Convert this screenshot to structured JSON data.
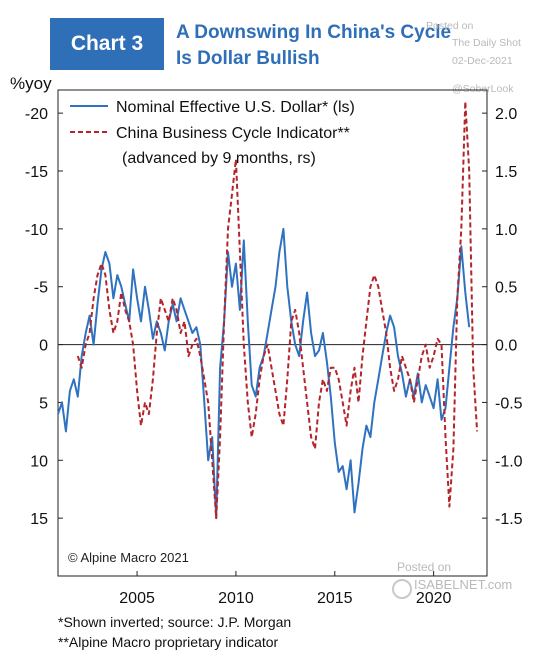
{
  "header": {
    "badge": "Chart 3",
    "title_line1": "A Downswing In China's Cycle",
    "title_line2": "Is Dollar Bullish"
  },
  "watermarks": {
    "posted_on": "Posted on",
    "source": "The Daily Shot",
    "date": "02-Dec-2021",
    "handle": "@SoberLook",
    "posted_on_2": "Posted on",
    "site": "ISABELNET.com"
  },
  "copyright": "© Alpine Macro 2021",
  "footnotes": [
    "*Shown inverted; source: J.P. Morgan",
    "**Alpine Macro proprietary indicator"
  ],
  "colors": {
    "dollar": "#2f73c0",
    "china": "#b5242a",
    "title": "#2e6fb7"
  },
  "chart_data": {
    "type": "line",
    "y_left_unit": "%yoy",
    "y_left_inverted": true,
    "y_left_lim": [
      -22,
      20
    ],
    "y_left_ticks": [
      -20,
      -15,
      -10,
      -5,
      0,
      5,
      10,
      15
    ],
    "y_left_tick_labels": [
      "-20",
      "-15",
      "-10",
      "-5",
      "0",
      "5",
      "10",
      "15"
    ],
    "y_right_lim": [
      -2.0,
      2.2
    ],
    "y_right_ticks": [
      2.0,
      1.5,
      1.0,
      0.5,
      0.0,
      -0.5,
      -1.0,
      -1.5
    ],
    "y_right_tick_labels": [
      "2.0",
      "1.5",
      "1.0",
      "0.5",
      "0.0",
      "-0.5",
      "-1.0",
      "-1.5"
    ],
    "x_lim": [
      2001.0,
      2022.7
    ],
    "x_ticks": [
      2005,
      2010,
      2015,
      2020
    ],
    "x_tick_labels": [
      "2005",
      "2010",
      "2015",
      "2020"
    ],
    "legend": [
      "Nominal Effective U.S. Dollar* (ls)",
      "China Business Cycle Indicator**",
      "(advanced by 9 months, rs)"
    ],
    "series": [
      {
        "name": "Nominal Effective U.S. Dollar* (ls)",
        "axis": "left",
        "style": "solid",
        "x": [
          2001.0,
          2001.2,
          2001.4,
          2001.6,
          2001.8,
          2002.0,
          2002.2,
          2002.4,
          2002.6,
          2002.8,
          2003.0,
          2003.2,
          2003.4,
          2003.6,
          2003.8,
          2004.0,
          2004.2,
          2004.4,
          2004.6,
          2004.8,
          2005.0,
          2005.2,
          2005.4,
          2005.6,
          2005.8,
          2006.0,
          2006.2,
          2006.4,
          2006.6,
          2006.8,
          2007.0,
          2007.2,
          2007.4,
          2007.6,
          2007.8,
          2008.0,
          2008.2,
          2008.4,
          2008.6,
          2008.8,
          2009.0,
          2009.2,
          2009.4,
          2009.6,
          2009.8,
          2010.0,
          2010.2,
          2010.4,
          2010.6,
          2010.8,
          2011.0,
          2011.2,
          2011.4,
          2011.6,
          2011.8,
          2012.0,
          2012.2,
          2012.4,
          2012.6,
          2012.8,
          2013.0,
          2013.2,
          2013.4,
          2013.6,
          2013.8,
          2014.0,
          2014.2,
          2014.4,
          2014.6,
          2014.8,
          2015.0,
          2015.2,
          2015.4,
          2015.6,
          2015.8,
          2016.0,
          2016.2,
          2016.4,
          2016.6,
          2016.8,
          2017.0,
          2017.2,
          2017.4,
          2017.6,
          2017.8,
          2018.0,
          2018.2,
          2018.4,
          2018.6,
          2018.8,
          2019.0,
          2019.2,
          2019.4,
          2019.6,
          2019.8,
          2020.0,
          2020.2,
          2020.4,
          2020.6,
          2020.8,
          2021.0,
          2021.2,
          2021.4,
          2021.6,
          2021.8
        ],
        "values": [
          6.0,
          5.0,
          7.5,
          4.0,
          3.0,
          4.5,
          1.0,
          -1.0,
          -2.5,
          0.0,
          -3.5,
          -6.5,
          -8.0,
          -7.0,
          -4.0,
          -6.0,
          -5.0,
          -3.5,
          -2.0,
          -6.5,
          -4.0,
          -2.0,
          -5.0,
          -3.0,
          -0.5,
          -2.0,
          -1.0,
          0.5,
          -2.0,
          -3.5,
          -2.0,
          -4.0,
          -3.0,
          -2.0,
          -1.0,
          -1.5,
          0.0,
          5.0,
          10.0,
          8.0,
          15.0,
          2.0,
          -2.0,
          -8.0,
          -5.0,
          -7.0,
          -3.0,
          -9.0,
          -2.0,
          3.5,
          4.5,
          2.0,
          1.0,
          -1.0,
          -3.0,
          -5.0,
          -8.0,
          -10.0,
          -5.0,
          -2.0,
          0.0,
          1.0,
          -2.0,
          -4.5,
          -1.0,
          1.0,
          0.5,
          -1.0,
          1.5,
          4.5,
          8.5,
          11.0,
          10.5,
          12.5,
          10.0,
          14.5,
          12.0,
          9.0,
          7.0,
          8.0,
          5.0,
          3.0,
          1.0,
          -1.0,
          -2.5,
          -1.5,
          1.0,
          2.5,
          4.5,
          3.0,
          4.5,
          2.5,
          5.0,
          3.5,
          4.5,
          5.5,
          3.0,
          6.5,
          5.5,
          2.0,
          -1.5,
          -4.0,
          -8.5,
          -4.5,
          -1.5
        ]
      },
      {
        "name": "China Business Cycle Indicator** (advanced by 9 months, rs)",
        "axis": "right",
        "style": "dashed",
        "x": [
          2002.0,
          2002.2,
          2002.4,
          2002.6,
          2002.8,
          2003.0,
          2003.2,
          2003.4,
          2003.6,
          2003.8,
          2004.0,
          2004.2,
          2004.4,
          2004.6,
          2004.8,
          2005.0,
          2005.2,
          2005.4,
          2005.6,
          2005.8,
          2006.0,
          2006.2,
          2006.4,
          2006.6,
          2006.8,
          2007.0,
          2007.2,
          2007.4,
          2007.6,
          2007.8,
          2008.0,
          2008.2,
          2008.4,
          2008.6,
          2008.8,
          2009.0,
          2009.2,
          2009.4,
          2009.6,
          2009.8,
          2010.0,
          2010.2,
          2010.4,
          2010.6,
          2010.8,
          2011.0,
          2011.2,
          2011.4,
          2011.6,
          2011.8,
          2012.0,
          2012.2,
          2012.4,
          2012.6,
          2012.8,
          2013.0,
          2013.2,
          2013.4,
          2013.6,
          2013.8,
          2014.0,
          2014.2,
          2014.4,
          2014.6,
          2014.8,
          2015.0,
          2015.2,
          2015.4,
          2015.6,
          2015.8,
          2016.0,
          2016.2,
          2016.4,
          2016.6,
          2016.8,
          2017.0,
          2017.2,
          2017.4,
          2017.6,
          2017.8,
          2018.0,
          2018.2,
          2018.4,
          2018.6,
          2018.8,
          2019.0,
          2019.2,
          2019.4,
          2019.6,
          2019.8,
          2020.0,
          2020.2,
          2020.4,
          2020.6,
          2020.8,
          2021.0,
          2021.2,
          2021.4,
          2021.6,
          2021.8,
          2022.0,
          2022.2
        ],
        "values": [
          -0.1,
          -0.2,
          0.0,
          0.1,
          0.4,
          0.6,
          0.7,
          0.6,
          0.3,
          0.1,
          0.2,
          0.45,
          0.3,
          0.2,
          0.0,
          -0.4,
          -0.7,
          -0.5,
          -0.6,
          -0.3,
          0.1,
          0.4,
          0.3,
          0.2,
          0.4,
          0.3,
          0.1,
          0.2,
          -0.1,
          0.0,
          0.05,
          -0.1,
          -0.3,
          -0.5,
          -1.0,
          -1.5,
          -0.8,
          0.2,
          1.0,
          1.3,
          1.6,
          0.8,
          0.0,
          -0.5,
          -0.8,
          -0.6,
          -0.3,
          -0.1,
          0.0,
          -0.2,
          -0.4,
          -0.6,
          -0.7,
          -0.3,
          0.2,
          0.3,
          0.1,
          -0.2,
          -0.5,
          -0.8,
          -0.9,
          -0.5,
          -0.3,
          -0.4,
          -0.2,
          -0.2,
          -0.3,
          -0.5,
          -0.7,
          -0.4,
          -0.2,
          -0.5,
          -0.1,
          0.2,
          0.5,
          0.6,
          0.5,
          0.3,
          0.1,
          -0.2,
          -0.4,
          -0.3,
          -0.1,
          -0.2,
          -0.3,
          -0.5,
          -0.3,
          -0.1,
          0.0,
          -0.2,
          -0.1,
          0.05,
          0.0,
          -0.8,
          -1.4,
          -0.9,
          0.4,
          1.0,
          2.1,
          1.5,
          -0.2,
          -0.75
        ]
      }
    ]
  }
}
